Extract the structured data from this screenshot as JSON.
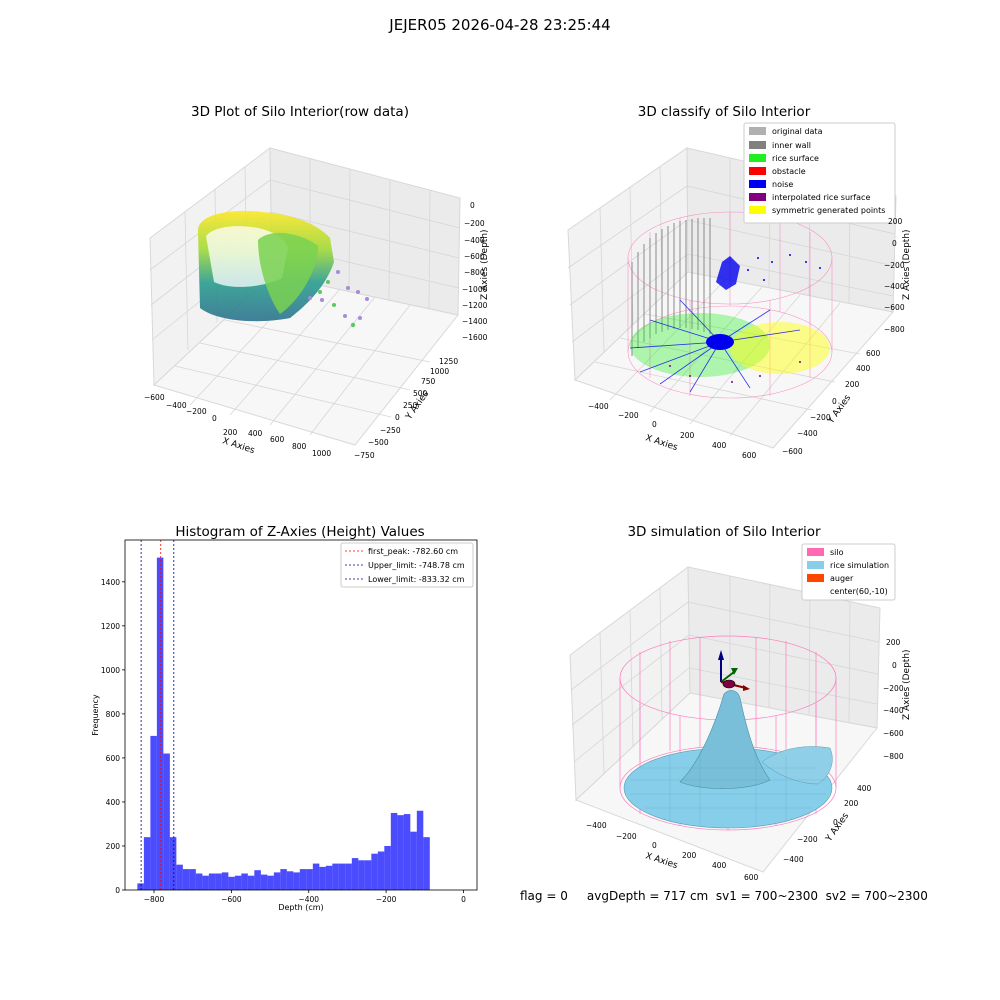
{
  "suptitle": "JEJER05 2026-04-28 23:25:44",
  "footer": "flag = 0     avgDepth = 717 cm  sv1 = 700~2300  sv2 = 700~2300",
  "chart_data": [
    {
      "type": "scatter3d",
      "title": "3D Plot of Silo Interior(row data)",
      "xlabel": "X Axies",
      "ylabel": "Y Axies",
      "zlabel": "Z Axies (Depth)",
      "x_ticks": [
        "−600",
        "−400",
        "−200",
        "0",
        "200",
        "400",
        "600",
        "800",
        "1000"
      ],
      "y_ticks": [
        "−750",
        "−500",
        "−250",
        "0",
        "250",
        "500",
        "750",
        "1000",
        "1250"
      ],
      "z_ticks": [
        "0",
        "−200",
        "−400",
        "−600",
        "−800",
        "−1000",
        "−1200",
        "−1400",
        "−1600"
      ],
      "colormap": "viridis"
    },
    {
      "type": "scatter3d",
      "title": "3D classify of Silo Interior",
      "xlabel": "X Axies",
      "ylabel": "Y Axies",
      "zlabel": "Z Axies (Depth)",
      "x_ticks": [
        "−400",
        "−200",
        "0",
        "200",
        "400",
        "600"
      ],
      "y_ticks": [
        "−600",
        "−400",
        "−200",
        "0",
        "200",
        "400",
        "600"
      ],
      "z_ticks": [
        "200",
        "0",
        "−200",
        "−400",
        "−600",
        "−800"
      ],
      "legend_position": "top-right",
      "legend": [
        {
          "label": "original data",
          "color": "#b0b0b0"
        },
        {
          "label": "inner wall",
          "color": "#808080"
        },
        {
          "label": "rice surface",
          "color": "#22ee22"
        },
        {
          "label": "obstacle",
          "color": "#ff0000"
        },
        {
          "label": "noise",
          "color": "#0000ee"
        },
        {
          "label": "interpolated rice surface",
          "color": "#800080"
        },
        {
          "label": "symmetric generated points",
          "color": "#ffff00"
        }
      ]
    },
    {
      "type": "bar",
      "title": "Histogram of Z-Axies (Height) Values",
      "xlabel": "Depth (cm)",
      "ylabel": "Frequency",
      "xlim": [
        -875,
        35
      ],
      "ylim": [
        0,
        1590
      ],
      "x_ticks": [
        -800,
        -600,
        -400,
        -200,
        0
      ],
      "y_ticks": [
        0,
        200,
        400,
        600,
        800,
        1000,
        1200,
        1400
      ],
      "bar_color": "#0000ff",
      "bin_start": -843,
      "bin_width": 16.8,
      "values": [
        30,
        240,
        700,
        1510,
        620,
        240,
        115,
        95,
        95,
        75,
        65,
        75,
        75,
        80,
        60,
        65,
        75,
        65,
        90,
        70,
        65,
        80,
        95,
        85,
        80,
        95,
        95,
        120,
        105,
        110,
        120,
        120,
        120,
        145,
        135,
        135,
        165,
        175,
        200,
        350,
        340,
        345,
        265,
        360,
        240
      ],
      "legend_position": "top-right",
      "lines": [
        {
          "label": "first_peak: -782.60 cm",
          "x": -782.6,
          "color": "#ff0000"
        },
        {
          "label": "Upper_limit: -748.78 cm",
          "x": -748.78,
          "color": "#00008b"
        },
        {
          "label": "Lower_limit: -833.32 cm",
          "x": -833.32,
          "color": "#00008b"
        }
      ]
    },
    {
      "type": "surface3d",
      "title": "3D simulation of Silo Interior",
      "xlabel": "X Axies",
      "ylabel": "Y Axies",
      "zlabel": "Z Axies (Depth)",
      "x_ticks": [
        "−400",
        "−200",
        "0",
        "200",
        "400",
        "600"
      ],
      "y_ticks": [
        "−400",
        "−200",
        "0",
        "200",
        "400"
      ],
      "z_ticks": [
        "200",
        "0",
        "−200",
        "−400",
        "−600",
        "−800"
      ],
      "legend_position": "top-right",
      "legend": [
        {
          "label": "silo",
          "color": "#ff69b4"
        },
        {
          "label": "rice simulation",
          "color": "#87ceeb"
        },
        {
          "label": "auger",
          "color": "#ff4500"
        },
        {
          "label": "center(60,-10)",
          "color": ""
        }
      ]
    }
  ]
}
